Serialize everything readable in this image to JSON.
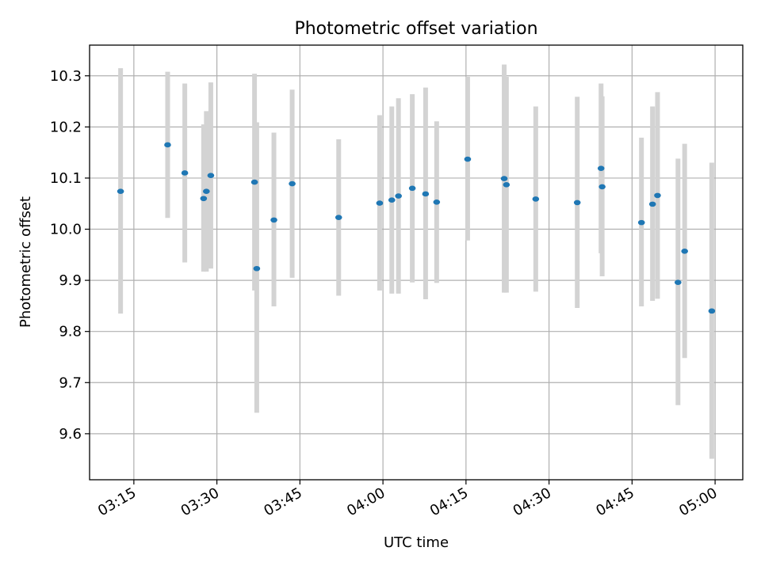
{
  "chart_data": {
    "type": "scatter",
    "title": "Photometric offset variation",
    "xlabel": "UTC time",
    "ylabel": "Photometric offset",
    "xlim": [
      "03:07",
      "05:05"
    ],
    "ylim": [
      9.51,
      10.36
    ],
    "x_ticks": [
      "03:15",
      "03:30",
      "03:45",
      "04:00",
      "04:15",
      "04:30",
      "04:45",
      "05:00"
    ],
    "y_ticks": [
      9.6,
      9.7,
      9.8,
      9.9,
      10.0,
      10.1,
      10.2,
      10.3
    ],
    "grid": true,
    "colors": {
      "marker": "#1f77b4",
      "errorbar": "#d3d3d3",
      "grid": "#b0b0b0"
    },
    "series": [
      {
        "points": [
          {
            "x": "03:12.6",
            "y": 10.074,
            "low": 9.835,
            "high": 10.315
          },
          {
            "x": "03:21.1",
            "y": 10.165,
            "low": 10.022,
            "high": 10.308
          },
          {
            "x": "03:24.2",
            "y": 10.11,
            "low": 9.935,
            "high": 10.285
          },
          {
            "x": "03:27.6",
            "y": 10.06,
            "low": 9.917,
            "high": 10.205
          },
          {
            "x": "03:28.1",
            "y": 10.074,
            "low": 9.917,
            "high": 10.231
          },
          {
            "x": "03:28.9",
            "y": 10.105,
            "low": 9.923,
            "high": 10.287
          },
          {
            "x": "03:36.8",
            "y": 10.092,
            "low": 9.88,
            "high": 10.304
          },
          {
            "x": "03:37.2",
            "y": 9.923,
            "low": 9.641,
            "high": 10.209
          },
          {
            "x": "03:40.3",
            "y": 10.018,
            "low": 9.849,
            "high": 10.189
          },
          {
            "x": "03:43.6",
            "y": 10.089,
            "low": 9.905,
            "high": 10.273
          },
          {
            "x": "03:52.0",
            "y": 10.023,
            "low": 9.87,
            "high": 10.176
          },
          {
            "x": "03:59.4",
            "y": 10.051,
            "low": 9.88,
            "high": 10.223
          },
          {
            "x": "04:01.6",
            "y": 10.057,
            "low": 9.874,
            "high": 10.24
          },
          {
            "x": "04:02.8",
            "y": 10.065,
            "low": 9.874,
            "high": 10.256
          },
          {
            "x": "04:05.3",
            "y": 10.08,
            "low": 9.896,
            "high": 10.264
          },
          {
            "x": "04:07.7",
            "y": 10.069,
            "low": 9.863,
            "high": 10.277
          },
          {
            "x": "04:09.7",
            "y": 10.053,
            "low": 9.895,
            "high": 10.211
          },
          {
            "x": "04:15.3",
            "y": 10.137,
            "low": 9.978,
            "high": 10.298
          },
          {
            "x": "04:21.9",
            "y": 10.099,
            "low": 9.876,
            "high": 10.322
          },
          {
            "x": "04:22.3",
            "y": 10.087,
            "low": 9.876,
            "high": 10.298
          },
          {
            "x": "04:27.6",
            "y": 10.059,
            "low": 9.878,
            "high": 10.24
          },
          {
            "x": "04:35.1",
            "y": 10.052,
            "low": 9.846,
            "high": 10.259
          },
          {
            "x": "04:39.4",
            "y": 10.119,
            "low": 9.953,
            "high": 10.285
          },
          {
            "x": "04:39.6",
            "y": 10.083,
            "low": 9.908,
            "high": 10.26
          },
          {
            "x": "04:46.7",
            "y": 10.013,
            "low": 9.849,
            "high": 10.179
          },
          {
            "x": "04:48.7",
            "y": 10.049,
            "low": 9.86,
            "high": 10.24
          },
          {
            "x": "04:49.6",
            "y": 10.066,
            "low": 9.864,
            "high": 10.268
          },
          {
            "x": "04:53.3",
            "y": 9.896,
            "low": 9.656,
            "high": 10.138
          },
          {
            "x": "04:54.5",
            "y": 9.957,
            "low": 9.748,
            "high": 10.167
          },
          {
            "x": "04:59.4",
            "y": 9.84,
            "low": 9.551,
            "high": 10.13
          }
        ]
      }
    ]
  }
}
